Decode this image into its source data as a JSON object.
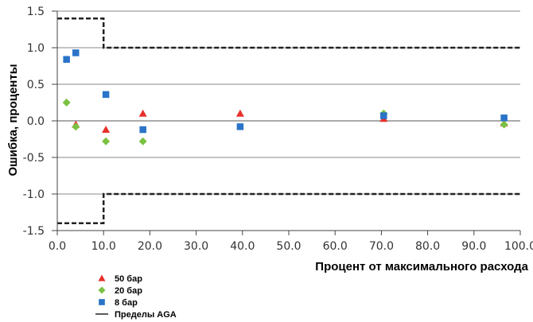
{
  "chart_data": {
    "type": "scatter",
    "xlabel": "Процент от максимального расхода",
    "ylabel": "Ошибка, проценты",
    "xlim": [
      0,
      100
    ],
    "ylim": [
      -1.5,
      1.5
    ],
    "x_ticks": [
      "0.0",
      "10.0",
      "20.0",
      "30.0",
      "40.0",
      "50.0",
      "60.0",
      "70.0",
      "80.0",
      "90.0",
      "100.0"
    ],
    "y_ticks": [
      "1.5",
      "1.0",
      "0.5",
      "0.0",
      "-0.5",
      "-1.0",
      "-1.5"
    ],
    "grid": "horizontal",
    "legend_position": "bottom-left",
    "series": [
      {
        "name": "50 бар",
        "marker": "triangle",
        "color": "#e8302a",
        "points": [
          [
            4,
            -0.05
          ],
          [
            10.5,
            -0.12
          ],
          [
            18.5,
            0.1
          ],
          [
            39.5,
            0.1
          ],
          [
            70.5,
            0.03
          ],
          [
            96.5,
            -0.03
          ]
        ]
      },
      {
        "name": "20 бар",
        "marker": "diamond",
        "color": "#7ac143",
        "points": [
          [
            2,
            0.25
          ],
          [
            4,
            -0.08
          ],
          [
            10.5,
            -0.28
          ],
          [
            18.5,
            -0.28
          ],
          [
            70.5,
            0.1
          ],
          [
            96.5,
            -0.05
          ]
        ]
      },
      {
        "name": "8 бар",
        "marker": "square",
        "color": "#2a73c8",
        "points": [
          [
            2,
            0.84
          ],
          [
            4,
            0.93
          ],
          [
            10.5,
            0.36
          ],
          [
            18.5,
            -0.12
          ],
          [
            39.5,
            -0.08
          ],
          [
            70.5,
            0.07
          ],
          [
            96.5,
            0.04
          ]
        ]
      }
    ],
    "limit_line": {
      "name": "Пределы AGA",
      "color": "#222222",
      "upper": [
        [
          0,
          1.4
        ],
        [
          10,
          1.4
        ],
        [
          10,
          1.0
        ],
        [
          100,
          1.0
        ]
      ],
      "lower": [
        [
          0,
          -1.4
        ],
        [
          10,
          -1.4
        ],
        [
          10,
          -1.0
        ],
        [
          100,
          -1.0
        ]
      ]
    }
  }
}
